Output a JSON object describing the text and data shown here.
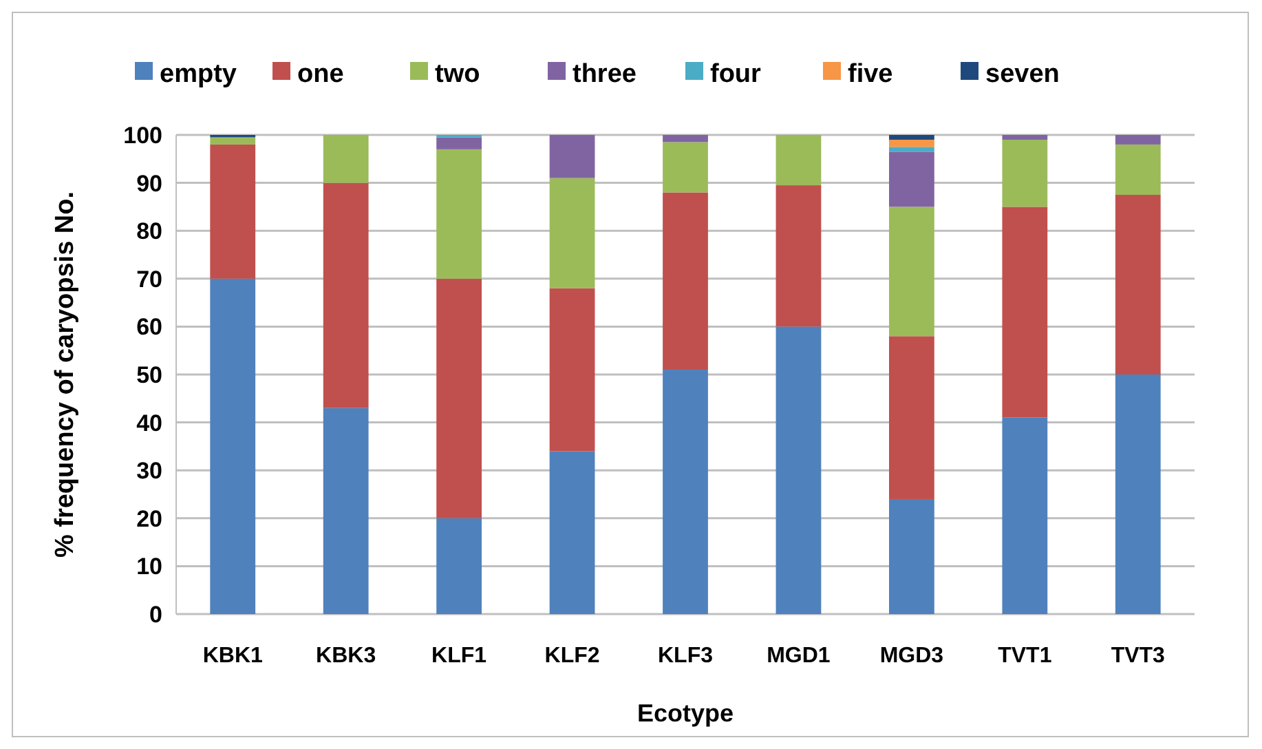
{
  "chart_data": {
    "type": "bar",
    "stacked": true,
    "xlabel": "Ecotype",
    "ylabel": "% frequency of caryopsis No.",
    "categories": [
      "KBK1",
      "KBK3",
      "KLF1",
      "KLF2",
      "KLF3",
      "MGD1",
      "MGD3",
      "TVT1",
      "TVT3"
    ],
    "series": [
      {
        "name": "empty",
        "color": "#4f81bd",
        "values": [
          70,
          43,
          20,
          34,
          51,
          60,
          24,
          41,
          50
        ]
      },
      {
        "name": "one",
        "color": "#c0504d",
        "values": [
          28,
          47,
          50,
          34,
          37,
          29.5,
          34,
          44,
          37.5
        ]
      },
      {
        "name": "two",
        "color": "#9bbb59",
        "values": [
          1.5,
          10,
          27,
          23,
          10.5,
          10.5,
          27,
          14,
          10.5
        ]
      },
      {
        "name": "three",
        "color": "#8064a2",
        "values": [
          0,
          0,
          2.5,
          9,
          1.5,
          0,
          11.5,
          1,
          2
        ]
      },
      {
        "name": "four",
        "color": "#4bacc6",
        "values": [
          0,
          0,
          0.5,
          0,
          0,
          0,
          1,
          0,
          0
        ]
      },
      {
        "name": "five",
        "color": "#f79646",
        "values": [
          0,
          0,
          0,
          0,
          0,
          0,
          1.5,
          0,
          0
        ]
      },
      {
        "name": "seven",
        "color": "#1f497d",
        "values": [
          0.5,
          0,
          0,
          0,
          0,
          0,
          1,
          0,
          0
        ]
      }
    ],
    "ylim": [
      0,
      100
    ],
    "yticks": [
      0,
      10,
      20,
      30,
      40,
      50,
      60,
      70,
      80,
      90,
      100
    ],
    "grid": "y",
    "legend": "top"
  }
}
